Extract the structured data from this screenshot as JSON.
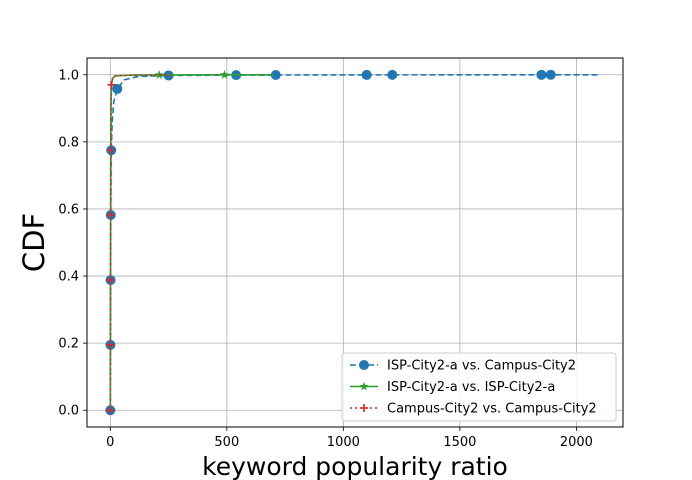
{
  "chart_data": {
    "type": "line",
    "xlabel": "keyword popularity ratio",
    "ylabel": "CDF",
    "xlim": [
      -100,
      2200
    ],
    "ylim": [
      -0.05,
      1.05
    ],
    "xticks": [
      0,
      500,
      1000,
      1500,
      2000
    ],
    "yticks": [
      0.0,
      0.2,
      0.4,
      0.6,
      0.8,
      1.0
    ],
    "grid": true,
    "legend_position": "lower-right",
    "series": [
      {
        "name": "ISP-City2-a vs. Campus-City2",
        "color": "#1f77b4",
        "line_style": "dashed",
        "marker": "circle",
        "x": [
          0,
          0.6,
          1.2,
          2.2,
          4,
          8,
          15,
          30,
          60,
          120,
          250,
          540,
          710,
          1100,
          1210,
          1850,
          1890,
          2100
        ],
        "y": [
          0.0,
          0.195,
          0.388,
          0.582,
          0.775,
          0.86,
          0.92,
          0.958,
          0.985,
          0.995,
          0.998,
          0.999,
          0.9993,
          0.9996,
          0.9997,
          0.9998,
          0.9999,
          1.0
        ],
        "markers": [
          [
            0,
            0.0
          ],
          [
            0.6,
            0.195
          ],
          [
            1.2,
            0.388
          ],
          [
            2.2,
            0.582
          ],
          [
            4,
            0.775
          ],
          [
            30,
            0.958
          ],
          [
            250,
            0.998
          ],
          [
            540,
            0.999
          ],
          [
            710,
            0.9993
          ],
          [
            1100,
            0.9996
          ],
          [
            1210,
            0.9997
          ],
          [
            1850,
            0.9998
          ],
          [
            1890,
            0.9999
          ]
        ]
      },
      {
        "name": "ISP-City2-a vs. ISP-City2-a",
        "color": "#2ca02c",
        "line_style": "solid",
        "marker": "star",
        "x": [
          0,
          0.5,
          1,
          1.5,
          2,
          3,
          5,
          10,
          20,
          50,
          100,
          210,
          490,
          700
        ],
        "y": [
          0.0,
          0.195,
          0.388,
          0.582,
          0.775,
          0.9,
          0.97,
          0.99,
          0.996,
          0.998,
          0.999,
          0.9995,
          0.9998,
          1.0
        ],
        "markers": [
          [
            210,
            0.9995
          ],
          [
            490,
            0.9998
          ]
        ]
      },
      {
        "name": "Campus-City2 vs. Campus-City2",
        "color": "#d62728",
        "line_style": "dotted",
        "marker": "plus",
        "x": [
          0,
          0.5,
          1,
          1.5,
          2,
          3,
          5,
          10,
          20,
          50,
          100,
          180,
          260
        ],
        "y": [
          0.0,
          0.195,
          0.388,
          0.582,
          0.775,
          0.9,
          0.97,
          0.99,
          0.996,
          0.998,
          0.999,
          0.9995,
          1.0
        ],
        "markers": [
          [
            5,
            0.97
          ],
          [
            0,
            0.0
          ],
          [
            0.5,
            0.195
          ],
          [
            1,
            0.388
          ],
          [
            1.5,
            0.582
          ],
          [
            2,
            0.775
          ]
        ]
      }
    ]
  }
}
